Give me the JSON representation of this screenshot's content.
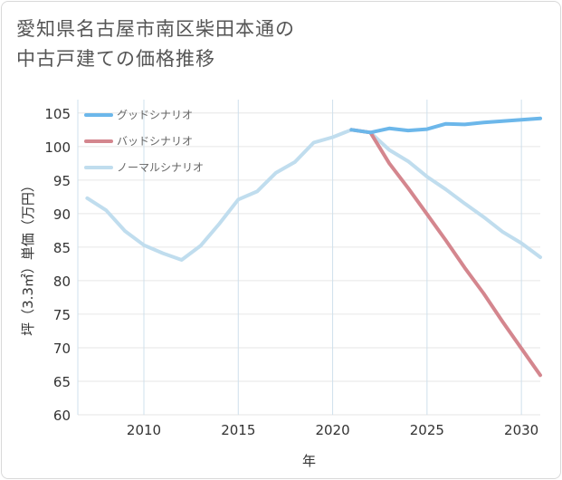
{
  "title": {
    "line1": "愛知県名古屋市南区柴田本通の",
    "line2": "中古戸建ての価格推移"
  },
  "chart_data": {
    "type": "line",
    "xlabel": "年",
    "ylabel": "坪（3.3㎡）単価（万円）",
    "xlim": [
      2006.5,
      2031
    ],
    "ylim": [
      60,
      107
    ],
    "x_ticks": [
      2010,
      2015,
      2020,
      2025,
      2030
    ],
    "y_ticks": [
      60,
      65,
      70,
      75,
      80,
      85,
      90,
      95,
      100,
      105
    ],
    "grid": true,
    "legend_position": "top-left",
    "series": [
      {
        "name": "グッドシナリオ",
        "color": "#6cb7ea",
        "x": [
          2021,
          2022,
          2023,
          2024,
          2025,
          2026,
          2027,
          2028,
          2029,
          2030,
          2031
        ],
        "y": [
          102.5,
          102.1,
          102.7,
          102.4,
          102.6,
          103.4,
          103.3,
          103.6,
          103.8,
          104.0,
          104.2
        ]
      },
      {
        "name": "バッドシナリオ",
        "color": "#d4868e",
        "x": [
          2021,
          2022,
          2023,
          2024,
          2025,
          2026,
          2027,
          2028,
          2029,
          2030,
          2031
        ],
        "y": [
          102.5,
          102.1,
          97.5,
          93.8,
          89.9,
          86.0,
          81.9,
          78.1,
          73.9,
          69.9,
          65.9
        ]
      },
      {
        "name": "ノーマルシナリオ",
        "color": "#c0ddee",
        "x": [
          2007,
          2008,
          2009,
          2010,
          2011,
          2012,
          2013,
          2014,
          2015,
          2016,
          2017,
          2018,
          2019,
          2020,
          2021,
          2022,
          2023,
          2024,
          2025,
          2026,
          2027,
          2028,
          2029,
          2030,
          2031
        ],
        "y": [
          92.3,
          90.5,
          87.4,
          85.3,
          84.1,
          83.1,
          85.2,
          88.5,
          92.1,
          93.3,
          96.1,
          97.7,
          100.6,
          101.4,
          102.5,
          102.1,
          99.5,
          97.8,
          95.5,
          93.6,
          91.5,
          89.5,
          87.3,
          85.6,
          83.5
        ]
      }
    ]
  }
}
